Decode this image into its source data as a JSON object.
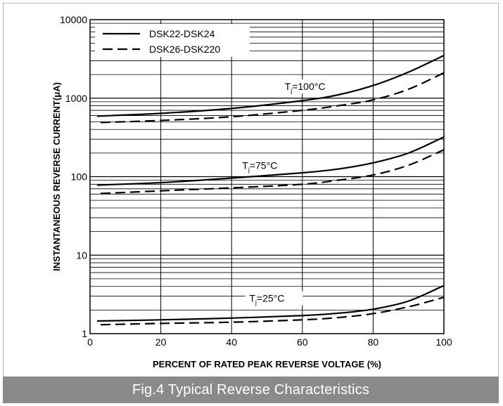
{
  "caption": "Fig.4 Typical Reverse Characteristics",
  "chart_data": {
    "type": "line",
    "title": "",
    "xlabel": "PERCENT OF RATED PEAK REVERSE VOLTAGE (%)",
    "ylabel": "INSTANTANEOUS REVERSE CURRENT(μA)",
    "x_scale": "linear",
    "y_scale": "log",
    "xlim": [
      0,
      100
    ],
    "ylim": [
      1,
      10000
    ],
    "x_ticks": [
      0,
      20,
      40,
      60,
      80,
      100
    ],
    "y_ticks": [
      {
        "value": 1,
        "label": "1"
      },
      {
        "value": 10,
        "label": "10"
      },
      {
        "value": 100,
        "label": "100"
      },
      {
        "value": 1000,
        "label": "1000"
      },
      {
        "value": 10000,
        "label": "10000"
      }
    ],
    "grid": true,
    "legend_position": "top-left",
    "legend": [
      {
        "label": "DSK22-DSK24",
        "style": "solid"
      },
      {
        "label": "DSK26-DSK220",
        "style": "dashed"
      }
    ],
    "annotations": [
      {
        "base": "T",
        "sub": "j",
        "text": "=100°C",
        "x": 55,
        "y": 1300
      },
      {
        "base": "T",
        "sub": "j",
        "text": "=75°C",
        "x": 43,
        "y": 128
      },
      {
        "base": "T",
        "sub": "j",
        "text": "=25°C",
        "x": 45,
        "y": 2.6
      }
    ],
    "series": [
      {
        "legend": "DSK22-DSK24",
        "condition": "Tj=100°C",
        "style": "solid",
        "x": [
          2,
          20,
          40,
          60,
          70,
          80,
          90,
          100
        ],
        "y": [
          590,
          640,
          740,
          930,
          1100,
          1450,
          2150,
          3500
        ]
      },
      {
        "legend": "DSK26-DSK220",
        "condition": "Tj=100°C",
        "style": "dashed",
        "x": [
          3,
          20,
          40,
          60,
          70,
          80,
          90,
          100
        ],
        "y": [
          490,
          520,
          580,
          700,
          800,
          950,
          1300,
          2100
        ]
      },
      {
        "legend": "DSK22-DSK24",
        "condition": "Tj=75°C",
        "style": "solid",
        "x": [
          2,
          20,
          40,
          60,
          70,
          80,
          90,
          100
        ],
        "y": [
          78,
          84,
          96,
          112,
          125,
          150,
          200,
          320
        ]
      },
      {
        "legend": "DSK26-DSK220",
        "condition": "Tj=75°C",
        "style": "dashed",
        "x": [
          3,
          20,
          40,
          60,
          70,
          80,
          90,
          100
        ],
        "y": [
          61,
          66,
          72,
          80,
          90,
          105,
          140,
          220
        ]
      },
      {
        "legend": "DSK22-DSK24",
        "condition": "Tj=25°C",
        "style": "solid",
        "x": [
          2,
          20,
          40,
          60,
          70,
          80,
          90,
          100
        ],
        "y": [
          1.45,
          1.5,
          1.58,
          1.7,
          1.82,
          2.05,
          2.6,
          4.1
        ]
      },
      {
        "legend": "DSK26-DSK220",
        "condition": "Tj=25°C",
        "style": "dashed",
        "x": [
          3,
          20,
          40,
          60,
          70,
          80,
          90,
          100
        ],
        "y": [
          1.3,
          1.35,
          1.4,
          1.5,
          1.6,
          1.8,
          2.2,
          2.9
        ]
      }
    ]
  }
}
